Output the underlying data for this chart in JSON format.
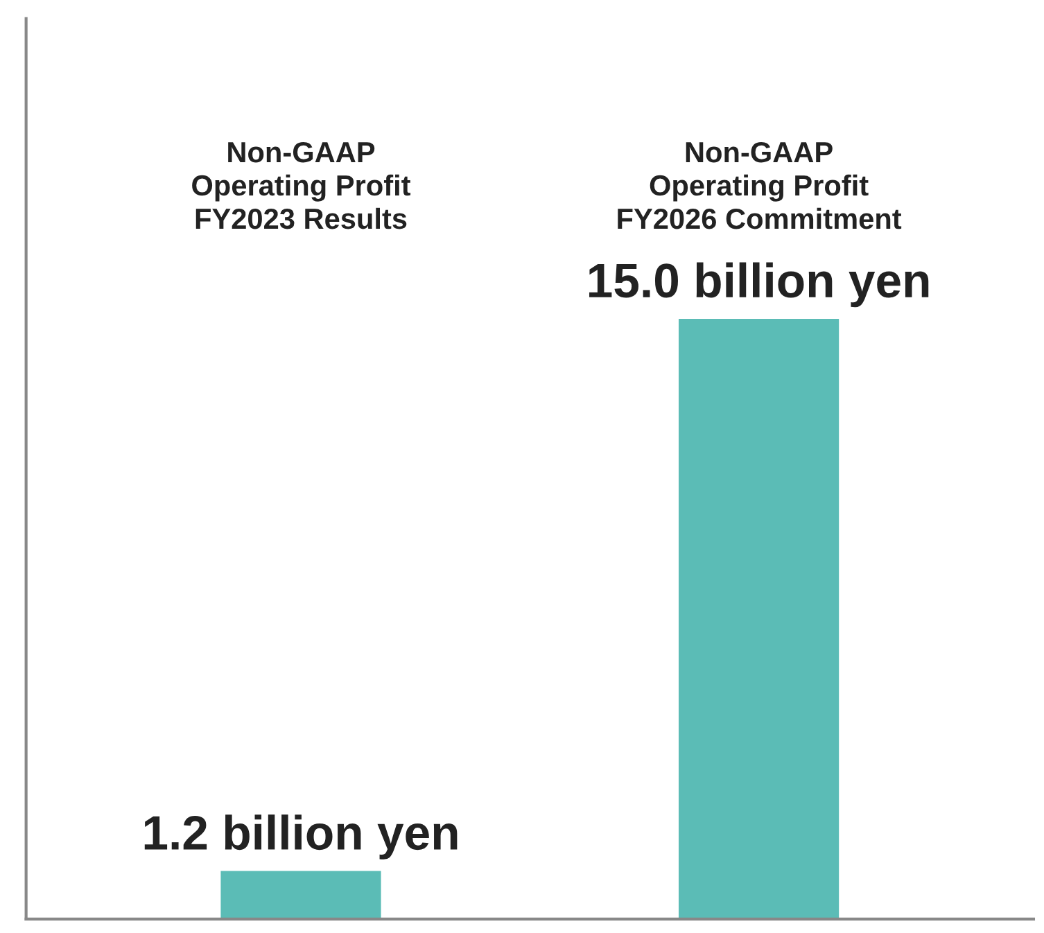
{
  "chart_data": {
    "type": "bar",
    "categories": [
      "Non-GAAP\nOperating Profit\nFY2023 Results",
      "Non-GAAP\nOperating Profit\nFY2026 Commitment"
    ],
    "values": [
      1.2,
      15.0
    ],
    "color": "#5bbcb6",
    "value_labels": [
      "1.2 billion yen",
      "15.0 billion yen"
    ],
    "legend": false
  }
}
